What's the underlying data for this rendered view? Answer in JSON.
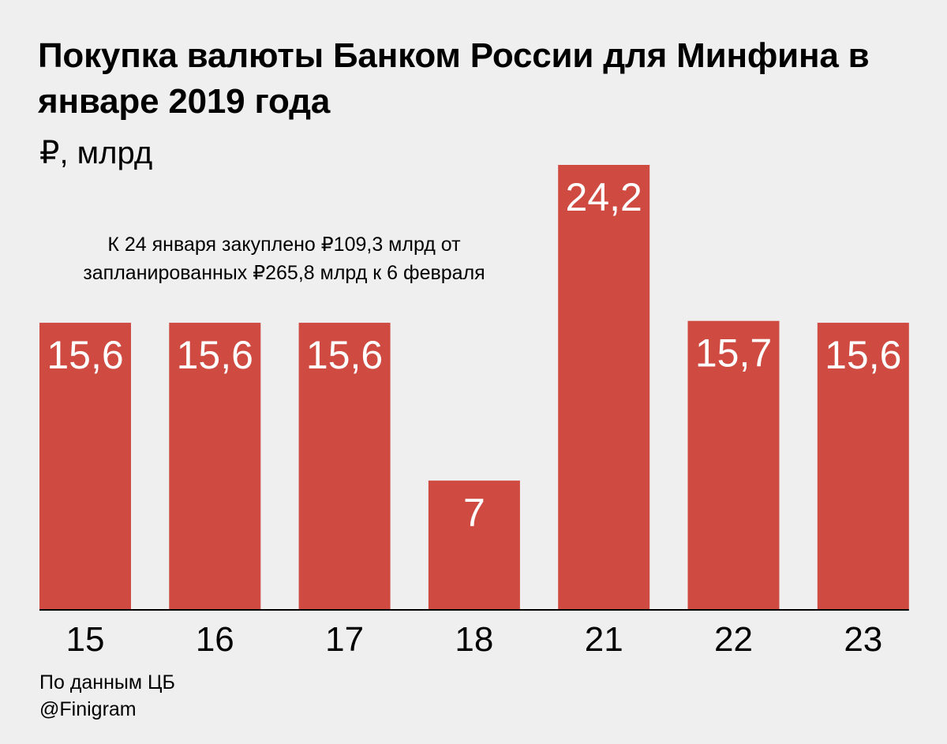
{
  "chart_data": {
    "type": "bar",
    "title": "Покупка валюты Банком России для Минфина в январе 2019 года",
    "subtitle": "₽, млрд",
    "xlabel": "",
    "ylabel": "",
    "categories": [
      "15",
      "16",
      "17",
      "18",
      "21",
      "22",
      "23"
    ],
    "values": [
      15.6,
      15.6,
      15.6,
      7,
      24.2,
      15.7,
      15.6
    ],
    "value_labels": [
      "15,6",
      "15,6",
      "15,6",
      "7",
      "24,2",
      "15,7",
      "15,6"
    ],
    "annotation": "К 24 января закуплено ₽109,3 млрд от запланированных ₽265,8 млрд к 6 февраля",
    "ylim": [
      0,
      24.2
    ],
    "grid": false,
    "legend": "none",
    "bar_color": "#cf4a41",
    "background": "#efefef"
  },
  "footer": {
    "source": "По данным ЦБ",
    "brand": "@Finigram"
  }
}
